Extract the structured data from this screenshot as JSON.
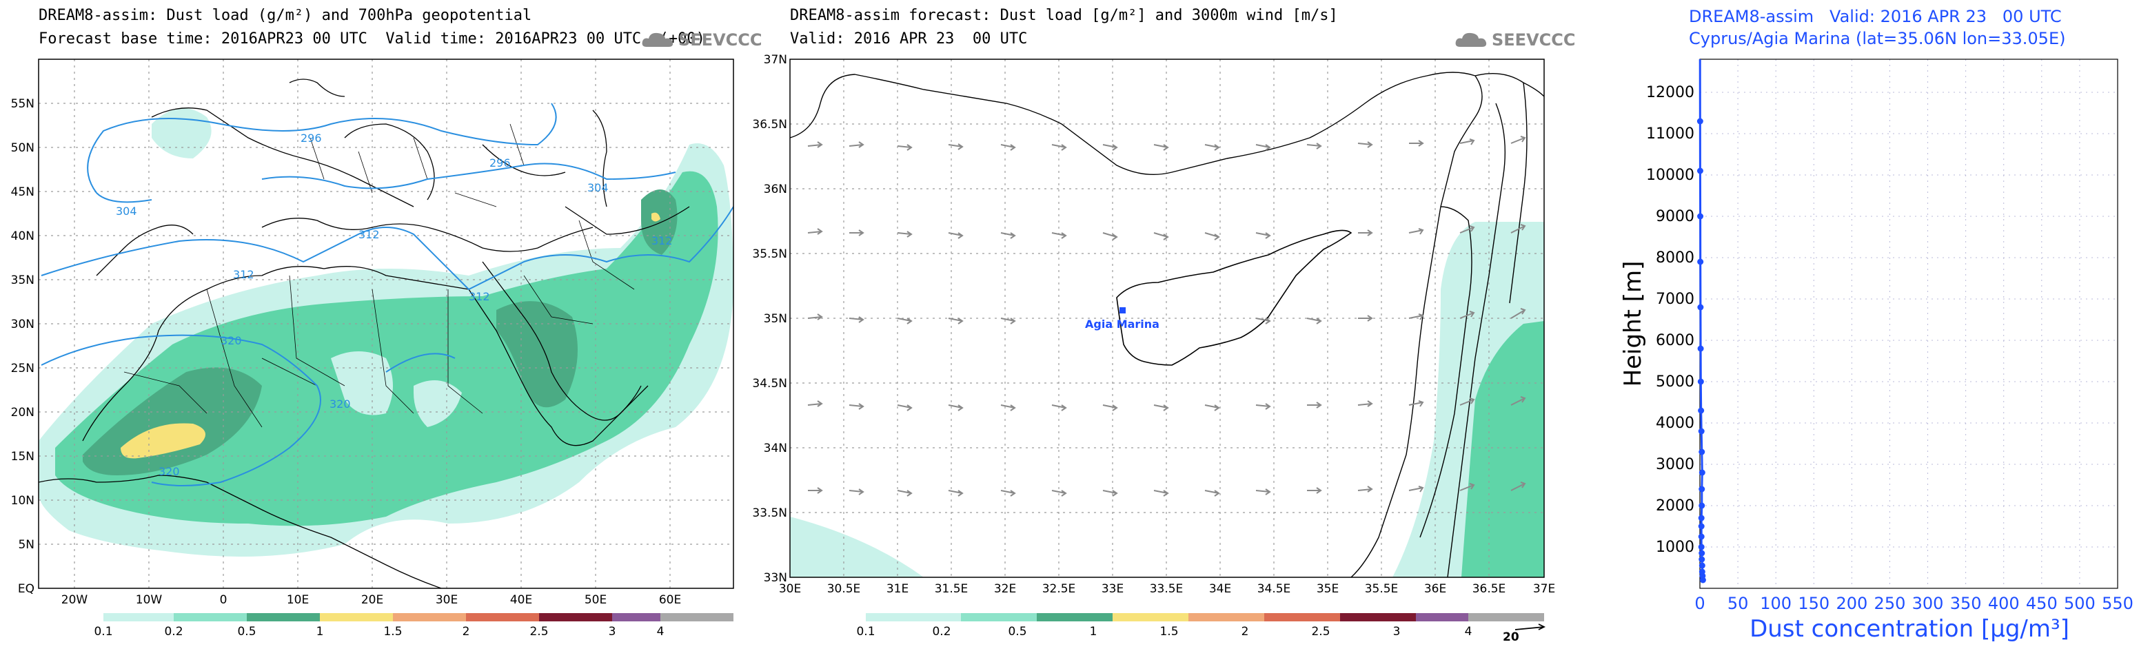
{
  "panels": {
    "left": {
      "title_line1": "DREAM8-assim: Dust load (g/m²) and 700hPa geopotential",
      "title_line2": "Forecast base time: 2016APR23 00 UTC  Valid time: 2016APR23 00 UTC  (+00)",
      "logo": "SEEVCCC",
      "logo_icon": "cloud-icon",
      "x_ticks": [
        "20W",
        "10W",
        "0",
        "10E",
        "20E",
        "30E",
        "40E",
        "50E",
        "60E"
      ],
      "y_ticks": [
        "EQ",
        "5N",
        "10N",
        "15N",
        "20N",
        "25N",
        "30N",
        "35N",
        "40N",
        "45N",
        "50N",
        "55N"
      ],
      "contour_labels": [
        "296",
        "296",
        "304",
        "304",
        "312",
        "312",
        "312",
        "312",
        "320",
        "320",
        "320"
      ]
    },
    "middle": {
      "title_line1": "DREAM8-assim forecast: Dust load [g/m²] and 3000m wind [m/s]",
      "title_line2": "Valid: 2016 APR 23  00 UTC",
      "logo": "SEEVCCC",
      "logo_icon": "cloud-icon",
      "x_ticks": [
        "30E",
        "30.5E",
        "31E",
        "31.5E",
        "32E",
        "32.5E",
        "33E",
        "33.5E",
        "34E",
        "34.5E",
        "35E",
        "35.5E",
        "36E",
        "36.5E",
        "37E"
      ],
      "y_ticks": [
        "33N",
        "33.5N",
        "34N",
        "34.5N",
        "35N",
        "35.5N",
        "36N",
        "36.5N",
        "37N"
      ],
      "station_label": "Agia Marina",
      "wind_ref": "20"
    },
    "right": {
      "title_line1": "DREAM8-assim   Valid: 2016 APR 23   00 UTC",
      "title_line2": "Cyprus/Agia Marina (lat=35.06N lon=33.05E)",
      "y_label": "Height [m]",
      "x_label": "Dust concentration [μg/m³]",
      "y_ticks": [
        "1000",
        "2000",
        "3000",
        "4000",
        "5000",
        "6000",
        "7000",
        "8000",
        "9000",
        "10000",
        "11000",
        "12000"
      ],
      "x_ticks": [
        "0",
        "50",
        "100",
        "150",
        "200",
        "250",
        "300",
        "350",
        "400",
        "450",
        "500",
        "550"
      ]
    }
  },
  "colorbar": {
    "labels": [
      "0.1",
      "0.2",
      "0.5",
      "1",
      "1.5",
      "2",
      "2.5",
      "3",
      "4"
    ],
    "colors": [
      "#c9f2ea",
      "#8de3c9",
      "#5fd5a8",
      "#4bab84",
      "#f7e27a",
      "#f0a878",
      "#dc6c52",
      "#b83248",
      "#7d1a30",
      "#8a5a9a",
      "#a8a8a8"
    ]
  },
  "chart_data": {
    "type": "line",
    "title": "DREAM8-assim   Valid: 2016 APR 23   00 UTC",
    "subtitle": "Cyprus/Agia Marina (lat=35.06N lon=33.05E)",
    "xlabel": "Dust concentration [μg/m³]",
    "ylabel": "Height [m]",
    "xlim": [
      0,
      550
    ],
    "ylim": [
      0,
      12800
    ],
    "grid": true,
    "series": [
      {
        "color": "#1f4fff",
        "x": [
          4,
          3.5,
          3,
          3,
          2.5,
          2.5,
          2,
          2,
          2,
          2,
          2.5,
          2.5,
          3,
          2.5,
          2,
          1.5,
          1.2,
          1,
          0.8,
          0.6,
          0.5,
          0.4
        ],
        "y": [
          200,
          300,
          400,
          550,
          700,
          850,
          1000,
          1250,
          1500,
          1700,
          2000,
          2400,
          2800,
          3300,
          3800,
          4300,
          5000,
          5800,
          6800,
          7900,
          9000,
          10100
        ]
      }
    ],
    "markers_extra": [
      {
        "x": 0.3,
        "y": 11300
      }
    ]
  }
}
